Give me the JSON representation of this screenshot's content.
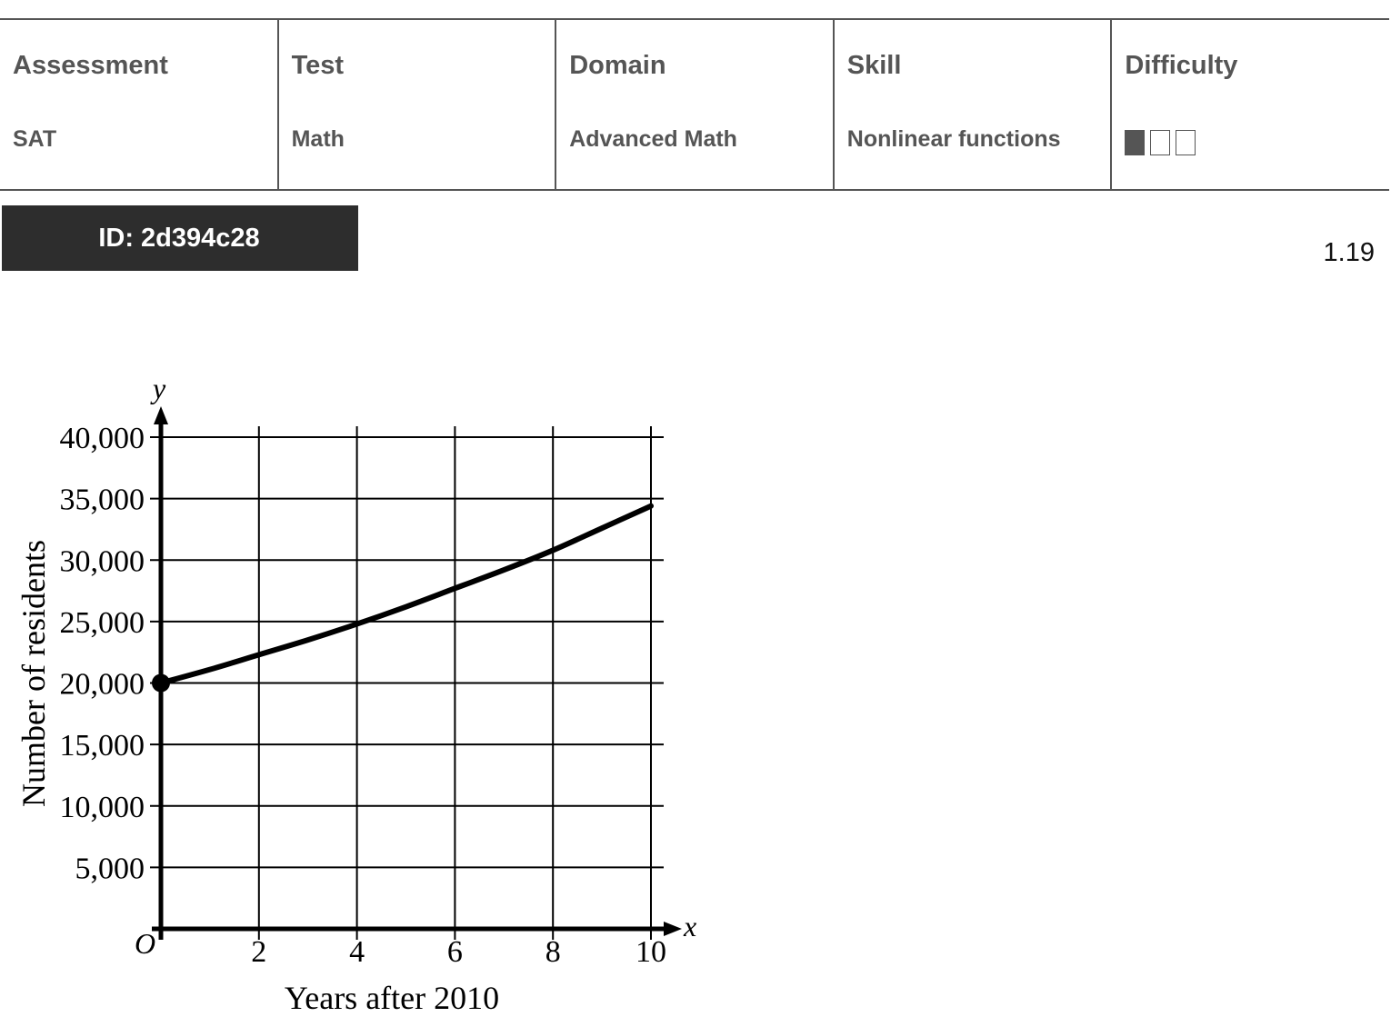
{
  "meta": {
    "headers": [
      "Assessment",
      "Test",
      "Domain",
      "Skill",
      "Difficulty"
    ],
    "values": [
      "SAT",
      "Math",
      "Advanced Math",
      "Nonlinear functions"
    ],
    "difficulty": {
      "level": 1,
      "max": 3
    }
  },
  "id_label": "ID: 2d394c28",
  "version": "1.19",
  "chart_data": {
    "type": "line",
    "xlabel": "Years after 2010",
    "ylabel": "Number of residents",
    "x_axis_symbol": "x",
    "y_axis_symbol": "y",
    "origin_label": "O",
    "xlim": [
      0,
      10
    ],
    "ylim": [
      0,
      40000
    ],
    "x_ticks": [
      2,
      4,
      6,
      8,
      10
    ],
    "x_tick_labels": [
      "2",
      "4",
      "6",
      "8",
      "10"
    ],
    "y_ticks": [
      5000,
      10000,
      15000,
      20000,
      25000,
      30000,
      35000,
      40000
    ],
    "y_tick_labels": [
      "5,000",
      "10,000",
      "15,000",
      "20,000",
      "25,000",
      "30,000",
      "35,000",
      "40,000"
    ],
    "grid": true,
    "x": [
      0,
      1,
      2,
      3,
      4,
      5,
      6,
      7,
      8,
      9,
      10
    ],
    "y": [
      20000,
      21100,
      22300,
      23500,
      24800,
      26200,
      27700,
      29200,
      30800,
      32600,
      34400
    ],
    "start_point": {
      "x": 0,
      "y": 20000
    }
  }
}
